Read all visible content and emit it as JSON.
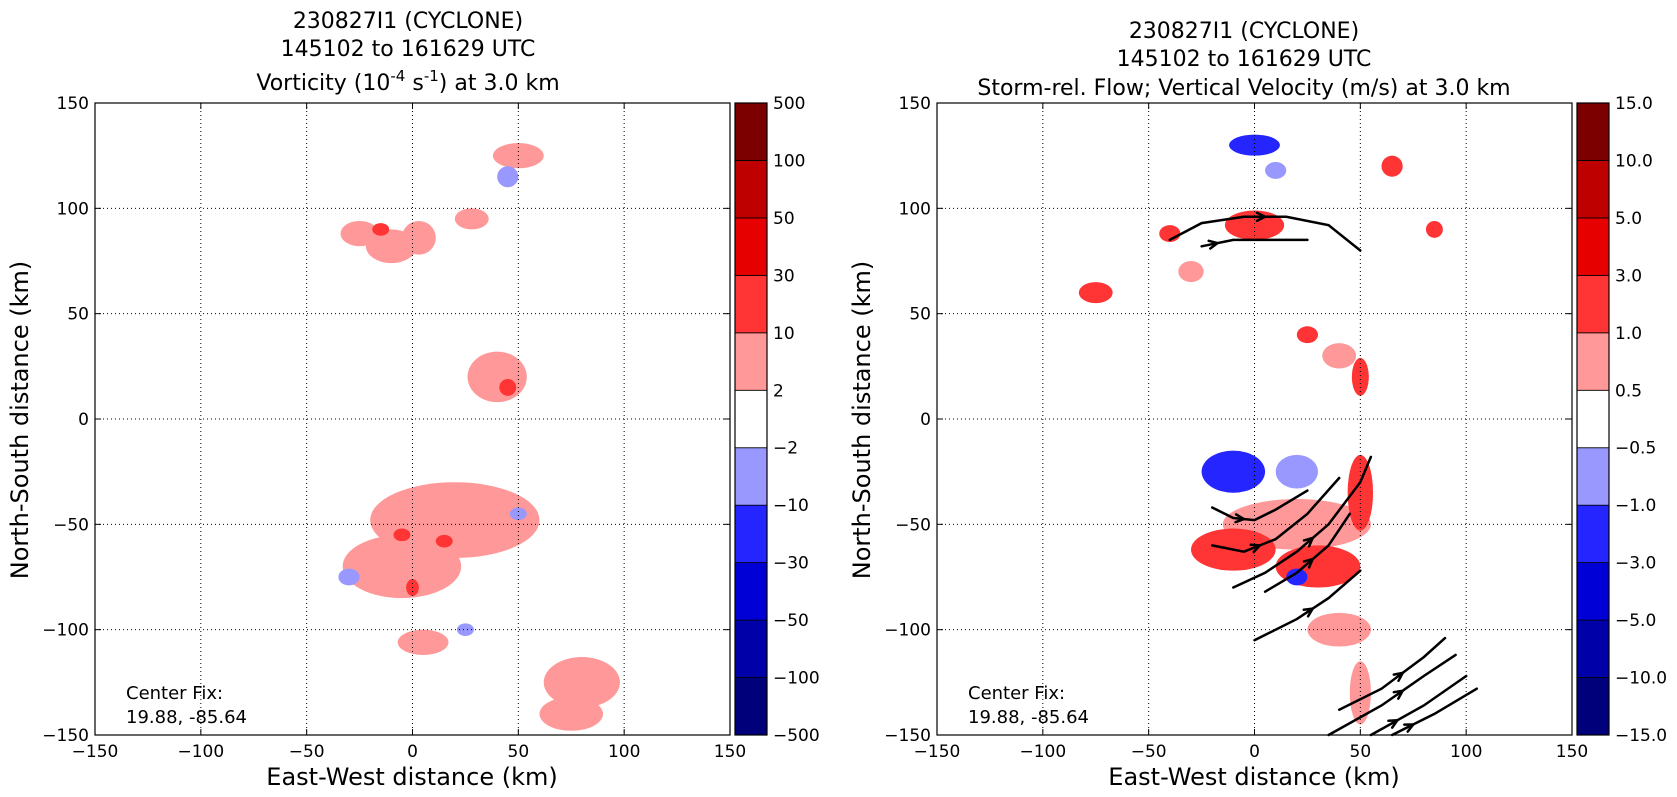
{
  "chart_data": [
    {
      "type": "heatmap",
      "title": [
        "230827I1 (CYCLONE)",
        "145102 to 161629 UTC"
      ],
      "title_line3": {
        "pre": "Vorticity (10",
        "sup1": "-4",
        "mid": " s",
        "sup2": "-1",
        "post": ") at 3.0 km"
      },
      "xlabel": "East-West distance (km)",
      "ylabel": "North-South distance (km)",
      "xlim": [
        -150,
        150
      ],
      "ylim": [
        -150,
        150
      ],
      "xticks": [
        -150,
        -100,
        -50,
        0,
        50,
        100,
        150
      ],
      "yticks": [
        -150,
        -100,
        -50,
        0,
        50,
        100,
        150
      ],
      "xtick_labels": [
        "−150",
        "−100",
        "−50",
        "0",
        "50",
        "100",
        "150"
      ],
      "ytick_labels": [
        "−150",
        "−100",
        "−50",
        "0",
        "50",
        "100",
        "150"
      ],
      "grid": true,
      "annotation": [
        "Center Fix:",
        "19.88, -85.64"
      ],
      "colorbar": {
        "levels": [
          "−500",
          "−100",
          "−50",
          "−30",
          "−10",
          "−2",
          "2",
          "10",
          "30",
          "50",
          "100",
          "500"
        ],
        "colors": [
          "#00007a",
          "#0000a8",
          "#0000d6",
          "#2525ff",
          "#9898ff",
          "#ffffff",
          "#ff9898",
          "#ff3434",
          "#e60000",
          "#bf0000",
          "#7d0000"
        ]
      },
      "field_blobs": [
        {
          "x": -25,
          "y": 88,
          "rx": 9,
          "ry": 6,
          "level": 1
        },
        {
          "x": -10,
          "y": 82,
          "rx": 12,
          "ry": 8,
          "level": 1
        },
        {
          "x": -15,
          "y": 90,
          "rx": 4,
          "ry": 3,
          "level": 2
        },
        {
          "x": 3,
          "y": 86,
          "rx": 8,
          "ry": 8,
          "level": 1
        },
        {
          "x": 28,
          "y": 95,
          "rx": 8,
          "ry": 5,
          "level": 1
        },
        {
          "x": 50,
          "y": 125,
          "rx": 12,
          "ry": 6,
          "level": 1
        },
        {
          "x": 40,
          "y": 20,
          "rx": 14,
          "ry": 12,
          "level": 1
        },
        {
          "x": 45,
          "y": 15,
          "rx": 4,
          "ry": 4,
          "level": 2
        },
        {
          "x": 20,
          "y": -48,
          "rx": 40,
          "ry": 18,
          "level": 1
        },
        {
          "x": -5,
          "y": -70,
          "rx": 28,
          "ry": 15,
          "level": 1
        },
        {
          "x": 15,
          "y": -58,
          "rx": 4,
          "ry": 3,
          "level": 2
        },
        {
          "x": -5,
          "y": -55,
          "rx": 4,
          "ry": 3,
          "level": 2
        },
        {
          "x": 0,
          "y": -80,
          "rx": 3,
          "ry": 4,
          "level": 2
        },
        {
          "x": 5,
          "y": -106,
          "rx": 12,
          "ry": 6,
          "level": 1
        },
        {
          "x": 80,
          "y": -125,
          "rx": 18,
          "ry": 12,
          "level": 1
        },
        {
          "x": 75,
          "y": -140,
          "rx": 15,
          "ry": 8,
          "level": 1
        },
        {
          "x": 45,
          "y": 115,
          "rx": 5,
          "ry": 5,
          "level": -1
        },
        {
          "x": -30,
          "y": -75,
          "rx": 5,
          "ry": 4,
          "level": -1
        },
        {
          "x": 25,
          "y": -100,
          "rx": 4,
          "ry": 3,
          "level": -1
        },
        {
          "x": 50,
          "y": -45,
          "rx": 4,
          "ry": 3,
          "level": -1
        }
      ]
    },
    {
      "type": "heatmap",
      "title": [
        "230827I1 (CYCLONE)",
        "145102 to 161629 UTC",
        "Storm-rel. Flow; Vertical Velocity (m/s) at 3.0 km"
      ],
      "xlabel": "East-West distance (km)",
      "ylabel": "North-South distance (km)",
      "xlim": [
        -150,
        150
      ],
      "ylim": [
        -150,
        150
      ],
      "xticks": [
        -150,
        -100,
        -50,
        0,
        50,
        100,
        150
      ],
      "yticks": [
        -150,
        -100,
        -50,
        0,
        50,
        100,
        150
      ],
      "xtick_labels": [
        "−150",
        "−100",
        "−50",
        "0",
        "50",
        "100",
        "150"
      ],
      "ytick_labels": [
        "−150",
        "−100",
        "−50",
        "0",
        "50",
        "100",
        "150"
      ],
      "grid": true,
      "annotation": [
        "Center Fix:",
        "19.88, -85.64"
      ],
      "colorbar": {
        "levels": [
          "−15.0",
          "−10.0",
          "−5.0",
          "−3.0",
          "−1.0",
          "−0.5",
          "0.5",
          "1.0",
          "3.0",
          "5.0",
          "10.0",
          "15.0"
        ],
        "colors": [
          "#00007a",
          "#0000a8",
          "#0000d6",
          "#2525ff",
          "#9898ff",
          "#ffffff",
          "#ff9898",
          "#ff3434",
          "#e60000",
          "#bf0000",
          "#7d0000"
        ]
      },
      "field_blobs": [
        {
          "x": 0,
          "y": 92,
          "rx": 14,
          "ry": 7,
          "level": 2
        },
        {
          "x": -40,
          "y": 88,
          "rx": 5,
          "ry": 4,
          "level": 2
        },
        {
          "x": -30,
          "y": 70,
          "rx": 6,
          "ry": 5,
          "level": 1
        },
        {
          "x": -75,
          "y": 60,
          "rx": 8,
          "ry": 5,
          "level": 2
        },
        {
          "x": 65,
          "y": 120,
          "rx": 5,
          "ry": 5,
          "level": 2
        },
        {
          "x": 85,
          "y": 90,
          "rx": 4,
          "ry": 4,
          "level": 2
        },
        {
          "x": 40,
          "y": 30,
          "rx": 8,
          "ry": 6,
          "level": 1
        },
        {
          "x": 50,
          "y": 20,
          "rx": 4,
          "ry": 9,
          "level": 2
        },
        {
          "x": 25,
          "y": 40,
          "rx": 5,
          "ry": 4,
          "level": 2
        },
        {
          "x": 20,
          "y": -50,
          "rx": 35,
          "ry": 12,
          "level": 1
        },
        {
          "x": -10,
          "y": -62,
          "rx": 20,
          "ry": 10,
          "level": 2
        },
        {
          "x": 30,
          "y": -70,
          "rx": 20,
          "ry": 10,
          "level": 2
        },
        {
          "x": 50,
          "y": -35,
          "rx": 6,
          "ry": 18,
          "level": 2
        },
        {
          "x": 40,
          "y": -100,
          "rx": 15,
          "ry": 8,
          "level": 1
        },
        {
          "x": 50,
          "y": -130,
          "rx": 5,
          "ry": 15,
          "level": 1
        },
        {
          "x": 0,
          "y": 130,
          "rx": 12,
          "ry": 5,
          "level": -2
        },
        {
          "x": 10,
          "y": 118,
          "rx": 5,
          "ry": 4,
          "level": -1
        },
        {
          "x": -10,
          "y": -25,
          "rx": 15,
          "ry": 10,
          "level": -2
        },
        {
          "x": 20,
          "y": -25,
          "rx": 10,
          "ry": 8,
          "level": -1
        },
        {
          "x": 20,
          "y": -75,
          "rx": 5,
          "ry": 4,
          "level": -2
        }
      ],
      "streamlines": [
        [
          [
            -40,
            85
          ],
          [
            -25,
            93
          ],
          [
            -5,
            96
          ],
          [
            15,
            96
          ],
          [
            35,
            92
          ],
          [
            50,
            80
          ]
        ],
        [
          [
            -25,
            82
          ],
          [
            -10,
            85
          ],
          [
            25,
            85
          ]
        ],
        [
          [
            -20,
            -42
          ],
          [
            -10,
            -47
          ],
          [
            0,
            -48
          ],
          [
            10,
            -43
          ],
          [
            25,
            -34
          ]
        ],
        [
          [
            -20,
            -60
          ],
          [
            -5,
            -63
          ],
          [
            10,
            -57
          ],
          [
            25,
            -45
          ],
          [
            40,
            -28
          ]
        ],
        [
          [
            -10,
            -80
          ],
          [
            5,
            -73
          ],
          [
            20,
            -63
          ],
          [
            35,
            -50
          ],
          [
            50,
            -30
          ],
          [
            55,
            -18
          ]
        ],
        [
          [
            5,
            -82
          ],
          [
            20,
            -73
          ],
          [
            35,
            -60
          ],
          [
            45,
            -45
          ]
        ],
        [
          [
            0,
            -105
          ],
          [
            20,
            -95
          ],
          [
            35,
            -85
          ],
          [
            50,
            -72
          ]
        ],
        [
          [
            40,
            -138
          ],
          [
            60,
            -128
          ],
          [
            80,
            -113
          ],
          [
            90,
            -104
          ]
        ],
        [
          [
            35,
            -150
          ],
          [
            60,
            -136
          ],
          [
            80,
            -122
          ],
          [
            95,
            -112
          ]
        ],
        [
          [
            55,
            -150
          ],
          [
            80,
            -136
          ],
          [
            100,
            -122
          ]
        ],
        [
          [
            65,
            -150
          ],
          [
            85,
            -140
          ],
          [
            105,
            -128
          ]
        ]
      ]
    }
  ]
}
